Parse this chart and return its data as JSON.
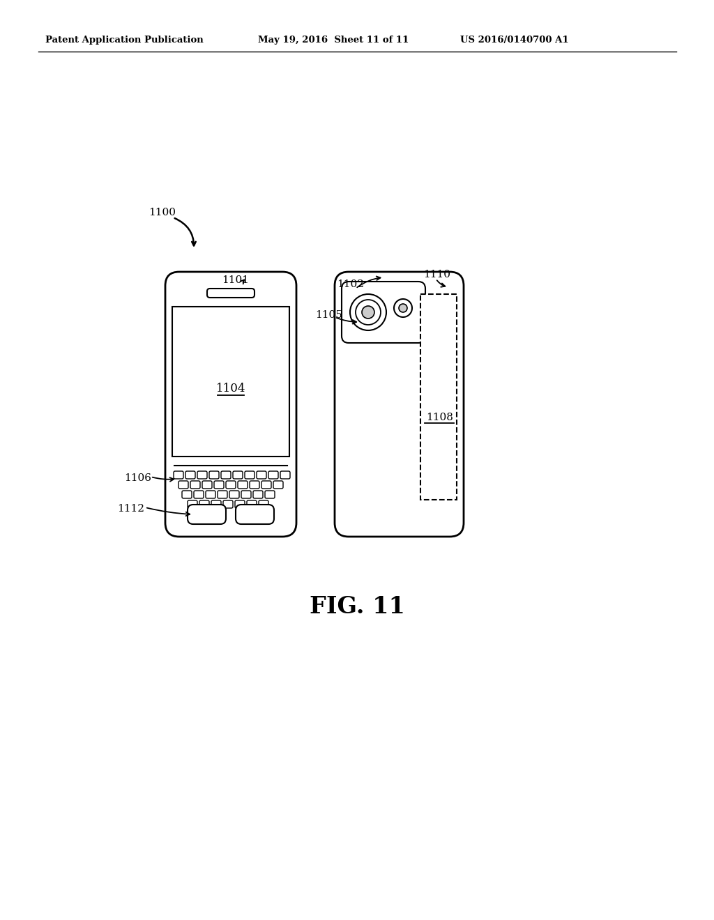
{
  "bg_color": "#ffffff",
  "header_left": "Patent Application Publication",
  "header_mid": "May 19, 2016  Sheet 11 of 11",
  "header_right": "US 2016/0140700 A1",
  "fig_label": "FIG. 11",
  "label_1100": "1100",
  "label_1101": "1101",
  "label_1102": "1102",
  "label_1104": "1104",
  "label_1105": "1105",
  "label_1106": "1106",
  "label_1108": "1108",
  "label_1110": "1110",
  "label_1112": "1112"
}
